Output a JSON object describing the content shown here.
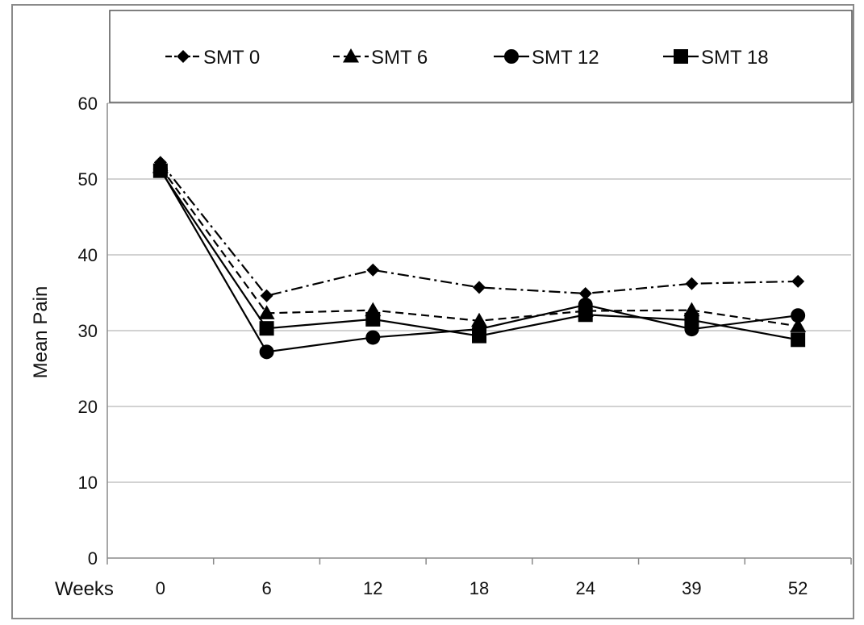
{
  "chart_data": {
    "type": "line",
    "title": "",
    "xlabel": "Weeks",
    "ylabel": "Mean Pain",
    "categories": [
      "0",
      "6",
      "12",
      "18",
      "24",
      "39",
      "52"
    ],
    "ylim": [
      0,
      60
    ],
    "yticks": [
      0,
      10,
      20,
      30,
      40,
      50,
      60
    ],
    "grid": "horizontal",
    "legend_position": "top",
    "series": [
      {
        "name": "SMT 0",
        "marker": "diamond",
        "dash": "dash-dot",
        "color": "#000000",
        "values": [
          52.2,
          34.6,
          38.0,
          35.7,
          34.9,
          36.2,
          36.5
        ]
      },
      {
        "name": "SMT 6",
        "marker": "triangle",
        "dash": "dashed",
        "color": "#000000",
        "values": [
          51.6,
          32.3,
          32.7,
          31.3,
          32.6,
          32.7,
          30.6
        ]
      },
      {
        "name": "SMT 12",
        "marker": "circle",
        "dash": "solid",
        "color": "#000000",
        "values": [
          51.3,
          27.2,
          29.1,
          30.2,
          33.4,
          30.2,
          32.0
        ]
      },
      {
        "name": "SMT 18",
        "marker": "square",
        "dash": "solid",
        "color": "#000000",
        "values": [
          51.1,
          30.3,
          31.5,
          29.3,
          32.1,
          31.4,
          28.8
        ]
      }
    ]
  }
}
